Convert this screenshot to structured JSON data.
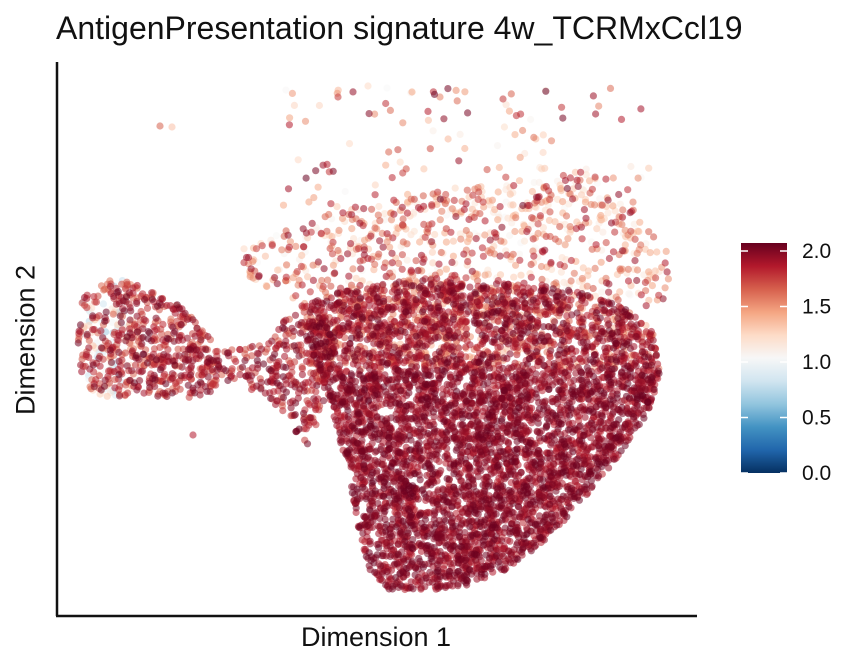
{
  "chart_data": {
    "type": "scatter",
    "title": "AntigenPresentation signature 4w_TCRMxCcl19",
    "xlabel": "Dimension 1",
    "ylabel": "Dimension 2",
    "axis_ticks_shown": false,
    "grid": false,
    "legend": {
      "type": "colorbar",
      "placement": "right",
      "ticks": [
        "2.0",
        "1.5",
        "1.0",
        "0.5",
        "0.0"
      ],
      "range": [
        0,
        2
      ],
      "colors": [
        "#053061",
        "#2166ac",
        "#4393c3",
        "#92c5de",
        "#d1e5f0",
        "#f7f7f7",
        "#fddbc7",
        "#f4a582",
        "#d6604d",
        "#b2182b",
        "#67001f"
      ]
    },
    "point_opacity": 0.55,
    "clusters": [
      {
        "region": "left island",
        "center": [
          0.19,
          0.52
        ],
        "approx_points": 650,
        "score_range": [
          0.6,
          2.0
        ]
      },
      {
        "region": "bridge",
        "center": [
          0.33,
          0.55
        ],
        "approx_points": 300,
        "score_range": [
          1.6,
          2.0
        ]
      },
      {
        "region": "main body",
        "center": [
          0.72,
          0.4
        ],
        "approx_points": 5500,
        "score_range": [
          1.2,
          2.0
        ]
      },
      {
        "region": "upper fringe",
        "center": [
          0.75,
          0.72
        ],
        "approx_points": 700,
        "score_range": [
          1.0,
          1.9
        ]
      }
    ]
  }
}
